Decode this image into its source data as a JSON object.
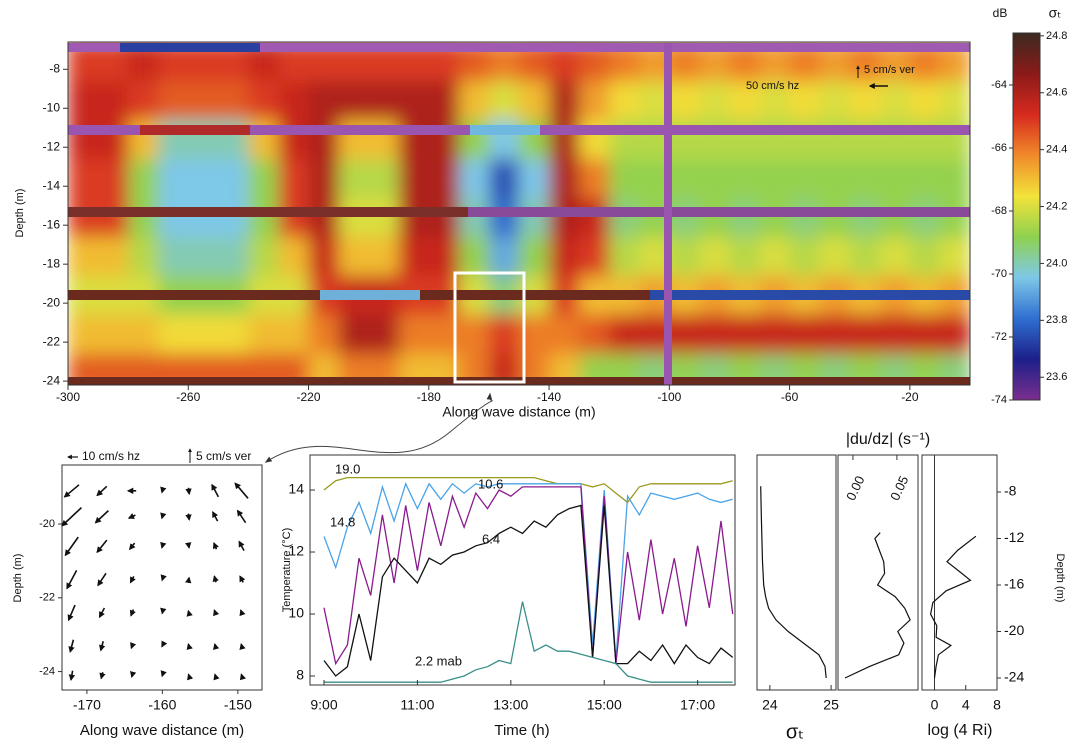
{
  "chart_data": [
    {
      "type": "heatmap",
      "xlabel": "Along wave distance (m)",
      "ylabel": "Depth (m)",
      "xlim": [
        -300,
        0
      ],
      "ylim": [
        -24.2,
        -6.6
      ],
      "xticks": [
        -300,
        -260,
        -220,
        -180,
        -140,
        -100,
        -60,
        -20
      ],
      "yticks": [
        -8,
        -10,
        -12,
        -14,
        -16,
        -18,
        -20,
        -22,
        -24
      ],
      "annotations": [
        "50 cm/s hz",
        "5 cm/s ver"
      ],
      "x": [
        -295,
        -285,
        -275,
        -265,
        -255,
        -245,
        -235,
        -225,
        -215,
        -205,
        -195,
        -185,
        -175,
        -165,
        -155,
        -145,
        -135,
        -125,
        -115,
        -105,
        -95,
        -85,
        -75,
        -65,
        -55,
        -45,
        -35,
        -25,
        -15,
        -5
      ],
      "y": [
        -7.6,
        -9.6,
        -11.6,
        -13.6,
        -15.6,
        -17.6,
        -19.6,
        -21.6,
        -23.6
      ],
      "z": [
        [
          24.5,
          24.5,
          24.55,
          24.5,
          24.5,
          24.5,
          24.55,
          24.5,
          24.5,
          24.5,
          24.5,
          24.5,
          24.5,
          24.45,
          24.4,
          24.45,
          24.5,
          24.45,
          24.4,
          24.35,
          24.4,
          24.35,
          24.4,
          24.35,
          24.4,
          24.35,
          24.4,
          24.35,
          24.4,
          24.35
        ],
        [
          24.55,
          24.55,
          24.5,
          24.45,
          24.45,
          24.45,
          24.5,
          24.55,
          24.6,
          24.6,
          24.6,
          24.6,
          24.6,
          24.3,
          24.2,
          24.3,
          24.6,
          24.35,
          24.25,
          24.2,
          24.25,
          24.2,
          24.25,
          24.2,
          24.25,
          24.2,
          24.25,
          24.2,
          24.25,
          24.2
        ],
        [
          24.55,
          24.55,
          24.3,
          24.0,
          24.0,
          24.0,
          24.3,
          24.55,
          24.6,
          24.3,
          24.3,
          24.6,
          24.6,
          24.1,
          23.95,
          24.1,
          24.6,
          24.25,
          24.15,
          24.15,
          24.15,
          24.15,
          24.15,
          24.15,
          24.15,
          24.15,
          24.15,
          24.15,
          24.15,
          24.15
        ],
        [
          24.5,
          24.5,
          24.1,
          23.95,
          23.95,
          23.95,
          24.1,
          24.5,
          24.6,
          24.15,
          24.15,
          24.6,
          24.6,
          23.95,
          23.75,
          23.95,
          24.6,
          24.4,
          24.1,
          24.1,
          24.1,
          24.1,
          24.1,
          24.1,
          24.1,
          24.1,
          24.1,
          24.1,
          24.1,
          24.1
        ],
        [
          24.5,
          24.5,
          24.1,
          23.95,
          23.95,
          23.95,
          24.1,
          24.5,
          24.6,
          24.2,
          24.2,
          24.6,
          24.6,
          24.0,
          23.8,
          24.0,
          24.6,
          24.55,
          24.05,
          24.1,
          24.05,
          24.1,
          24.05,
          24.1,
          24.05,
          24.1,
          24.05,
          24.1,
          24.05,
          24.1
        ],
        [
          24.3,
          24.3,
          24.15,
          24.0,
          24.0,
          24.0,
          24.15,
          24.3,
          24.55,
          24.3,
          24.3,
          24.55,
          24.55,
          24.1,
          23.9,
          24.1,
          24.55,
          24.5,
          24.15,
          24.2,
          24.15,
          24.2,
          24.15,
          24.2,
          24.15,
          24.2,
          24.15,
          24.2,
          24.15,
          24.2
        ],
        [
          24.2,
          24.2,
          24.2,
          24.1,
          24.1,
          24.1,
          24.2,
          24.2,
          24.5,
          24.55,
          24.55,
          24.5,
          24.5,
          24.2,
          24.05,
          24.2,
          24.5,
          24.3,
          24.3,
          24.35,
          24.3,
          24.35,
          24.3,
          24.35,
          24.3,
          24.35,
          24.3,
          24.35,
          24.3,
          24.35
        ],
        [
          24.3,
          24.3,
          24.3,
          24.25,
          24.25,
          24.25,
          24.3,
          24.3,
          24.4,
          24.6,
          24.6,
          24.4,
          24.4,
          24.4,
          24.5,
          24.4,
          24.4,
          24.45,
          24.55,
          24.55,
          24.55,
          24.55,
          24.55,
          24.55,
          24.55,
          24.55,
          24.55,
          24.55,
          24.55,
          24.55
        ],
        [
          24.45,
          24.45,
          24.45,
          24.45,
          24.45,
          24.45,
          24.45,
          24.45,
          24.3,
          24.4,
          24.4,
          24.3,
          24.3,
          24.4,
          24.55,
          24.4,
          24.3,
          24.1,
          24.1,
          24.05,
          24.1,
          24.05,
          24.1,
          24.05,
          24.1,
          24.05,
          24.1,
          24.05,
          24.1,
          24.05
        ]
      ],
      "colormap": [
        "#7b2f8e",
        "#1d1f8a",
        "#2f6fd0",
        "#7ec8e8",
        "#8fd14f",
        "#f2e33a",
        "#f08a2a",
        "#d62a1e",
        "#8b1a1a",
        "#3b2a20"
      ],
      "colorbar": {
        "left_label": "dB",
        "right_label": "σₜ",
        "left_lim": [
          -74,
          -62.35
        ],
        "left_ticks": [
          -64,
          -66,
          -68,
          -70,
          -72,
          -74
        ],
        "right_lim": [
          23.52,
          24.81
        ],
        "right_ticks": [
          24.8,
          24.6,
          24.4,
          24.2,
          {
            "value": 24,
            "label": "24.0"
          },
          23.8,
          23.6
        ]
      }
    },
    {
      "type": "quiver",
      "xlabel": "Along wave distance (m)",
      "ylabel": "Depth (m)",
      "xlim": [
        -173.3,
        -146.8
      ],
      "ylim": [
        -24.5,
        -18.4
      ],
      "xticks": [
        -170,
        -160,
        -150
      ],
      "yticks": [
        -20,
        -22,
        -24
      ],
      "annotations": [
        "10 cm/s hz",
        "5 cm/s ver"
      ],
      "x": [
        -172,
        -168,
        -164,
        -160,
        -156.5,
        -153,
        -149.5
      ],
      "y": [
        -19.1,
        -19.8,
        -20.6,
        -21.5,
        -22.4,
        -23.3,
        -24.1
      ],
      "u": [
        [
          -9,
          -6,
          -5,
          -0.5,
          0.5,
          -4,
          -8
        ],
        [
          -12,
          -8,
          -4,
          -0.5,
          0.5,
          -3,
          -5
        ],
        [
          -8,
          -6,
          -3,
          -0.5,
          0.3,
          -1.5,
          -3
        ],
        [
          -6,
          -5,
          -2,
          -0.3,
          0.3,
          -1,
          -2
        ],
        [
          -4,
          -3,
          -1.5,
          -0.2,
          -0.5,
          -1,
          -1
        ],
        [
          -2,
          -1.5,
          -1,
          -0.5,
          -0.5,
          -0.5,
          -0.5
        ],
        [
          -1,
          -1,
          -0.5,
          -0.3,
          -0.3,
          -0.3,
          -0.3
        ]
      ],
      "w": [
        [
          -4,
          -3,
          0,
          -1,
          -2,
          4,
          5
        ],
        [
          -6,
          -4,
          -1,
          -1,
          -2,
          3,
          4
        ],
        [
          -6,
          -4,
          -2,
          -1,
          -1,
          2,
          3
        ],
        [
          -6,
          -4,
          -2,
          -0.5,
          1,
          2,
          2
        ],
        [
          -5,
          -3,
          -2,
          -0.5,
          1,
          1.5,
          1.5
        ],
        [
          -4,
          -3,
          -1.5,
          -0.5,
          1,
          1,
          1
        ],
        [
          -3,
          -2,
          -1,
          -0.5,
          0.5,
          0.5,
          0.5
        ]
      ]
    },
    {
      "type": "line",
      "xlabel": "Time (h)",
      "ylabel": "Temperature (°C)",
      "xlim": [
        8.7,
        17.8
      ],
      "ylim": [
        7.71,
        15.13
      ],
      "xticks": [
        {
          "value": 9,
          "label": "9:00"
        },
        {
          "value": 11,
          "label": "11:00"
        },
        {
          "value": 13,
          "label": "13:00"
        },
        {
          "value": 15,
          "label": "15:00"
        },
        {
          "value": 17,
          "label": "17:00"
        }
      ],
      "yticks": [
        8,
        10,
        12,
        14
      ],
      "x": [
        9,
        9.25,
        9.5,
        9.75,
        10,
        10.25,
        10.5,
        10.75,
        11,
        11.25,
        11.5,
        11.75,
        12,
        12.25,
        12.5,
        12.75,
        13,
        13.25,
        13.5,
        13.75,
        14,
        14.25,
        14.5,
        14.75,
        15,
        15.25,
        15.5,
        15.75,
        16,
        16.25,
        16.5,
        16.75,
        17,
        17.25,
        17.5,
        17.75
      ],
      "series": [
        {
          "name": "19.0",
          "color": "#9a9a1e",
          "values": [
            14.0,
            14.3,
            14.4,
            14.4,
            14.4,
            14.4,
            14.4,
            14.4,
            14.4,
            14.4,
            14.4,
            14.4,
            14.4,
            14.4,
            14.4,
            14.4,
            14.4,
            14.4,
            14.4,
            14.3,
            14.2,
            14.2,
            14.2,
            14.1,
            14.2,
            13.9,
            13.6,
            14.1,
            14.2,
            14.2,
            14.2,
            14.2,
            14.2,
            14.2,
            14.2,
            14.3
          ]
        },
        {
          "name": "14.8",
          "color": "#4aa3e8",
          "values": [
            12.5,
            11.5,
            12.8,
            13.6,
            12.6,
            14.1,
            13.0,
            14.2,
            13.4,
            14.2,
            13.7,
            14.2,
            13.9,
            14.2,
            14.1,
            14.2,
            14.2,
            14.2,
            14.2,
            14.2,
            14.2,
            14.2,
            14.2,
            9.0,
            14.0,
            8.5,
            13.8,
            13.2,
            13.9,
            13.8,
            13.7,
            13.8,
            13.9,
            13.7,
            13.6,
            13.7
          ]
        },
        {
          "name": "10.6",
          "color": "#8a1a8e",
          "values": [
            10.2,
            8.4,
            9.0,
            11.8,
            10.6,
            13.2,
            11.0,
            13.5,
            11.4,
            13.6,
            12.2,
            13.8,
            12.8,
            13.9,
            13.4,
            14.0,
            13.8,
            14.1,
            14.1,
            14.1,
            14.1,
            14.1,
            14.1,
            8.6,
            13.8,
            8.4,
            12.0,
            9.8,
            12.4,
            10.0,
            11.8,
            9.6,
            12.2,
            10.2,
            13.0,
            10.0
          ]
        },
        {
          "name": "6.4",
          "color": "#111111",
          "values": [
            8.5,
            8.0,
            8.3,
            10.0,
            8.5,
            11.2,
            11.8,
            11.4,
            11.0,
            11.8,
            11.6,
            11.9,
            12.0,
            12.2,
            12.3,
            12.6,
            12.8,
            12.6,
            13.0,
            12.8,
            13.2,
            13.4,
            13.5,
            8.6,
            13.5,
            8.4,
            8.4,
            8.8,
            8.5,
            9.0,
            8.4,
            9.0,
            8.6,
            8.4,
            8.9,
            8.6
          ]
        },
        {
          "name": "2.2 mab",
          "color": "#3a8f8a",
          "values": [
            7.8,
            7.8,
            7.8,
            7.8,
            7.8,
            7.8,
            7.8,
            7.8,
            7.8,
            7.8,
            7.8,
            7.9,
            8.0,
            8.2,
            8.3,
            8.5,
            8.4,
            10.4,
            8.8,
            9.0,
            8.8,
            8.8,
            8.7,
            8.6,
            8.5,
            8.4,
            8.0,
            7.9,
            7.8,
            7.8,
            7.8,
            7.8,
            7.8,
            7.8,
            7.8,
            7.8
          ]
        }
      ]
    },
    {
      "type": "profile",
      "ylabel": "Depth (m)",
      "ylim": [
        -25.03,
        -4.82
      ],
      "yticks": [
        -8,
        -12,
        -16,
        -20,
        -24
      ],
      "panels": [
        {
          "xlabel": "σₜ",
          "xlim": [
            23.79,
            25.08
          ],
          "xticks": [
            24,
            25
          ],
          "depth": [
            -7.5,
            -10,
            -12,
            -14,
            -16,
            -17,
            -18,
            -19,
            -20,
            -21,
            -22,
            -23,
            -24
          ],
          "values": [
            23.85,
            23.86,
            23.87,
            23.88,
            23.9,
            23.93,
            23.98,
            24.1,
            24.3,
            24.55,
            24.8,
            24.9,
            24.92
          ]
        },
        {
          "xlabel": "|du/dz| (s⁻¹)",
          "xlim": [
            -0.017,
            0.074
          ],
          "xticks": [
            {
              "value": 0,
              "label": "0.00"
            },
            {
              "value": 0.05,
              "label": "0.05"
            }
          ],
          "depth": [
            -11.5,
            -12,
            -13,
            -14,
            -15,
            -16,
            -17,
            -18,
            -19,
            -20,
            -21,
            -22,
            -23,
            -24
          ],
          "values": [
            0.031,
            0.025,
            0.03,
            0.035,
            0.036,
            0.028,
            0.048,
            0.059,
            0.065,
            0.051,
            0.058,
            0.052,
            0.019,
            -0.009
          ]
        },
        {
          "xlabel": "log (4 Ri)",
          "xlim": [
            -1.6,
            8
          ],
          "xticks": [
            0,
            4,
            8
          ],
          "depth": [
            -11.8,
            -13,
            -14,
            -15,
            -15.6,
            -16.5,
            -17.5,
            -18.5,
            -19.5,
            -20.5,
            -21.2,
            -22,
            -23,
            -24
          ],
          "values": [
            5.3,
            3,
            1.6,
            3.5,
            4.6,
            1.5,
            -0.2,
            -0.5,
            0.3,
            0.2,
            2.1,
            0.5,
            0.2,
            0.0
          ]
        }
      ]
    }
  ]
}
